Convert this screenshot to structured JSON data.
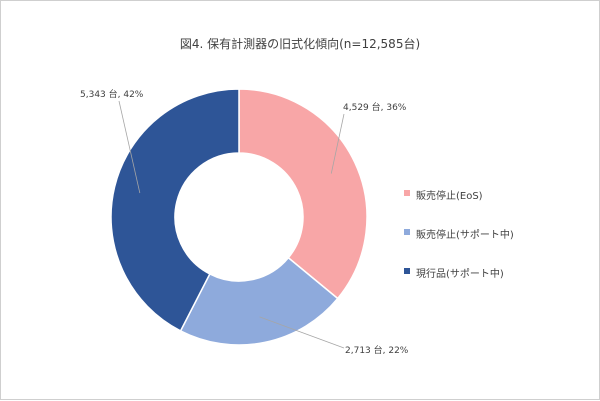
{
  "chart_data": {
    "type": "pie",
    "title": "図4. 保有計測器の旧式化傾向(n=12,585台)",
    "categories": [
      "販売停止(EoS)",
      "販売停止(サポート中)",
      "現行品(サポート中)"
    ],
    "values": [
      4529,
      2713,
      5343
    ],
    "percents": [
      36,
      22,
      42
    ],
    "data_labels": [
      "4,529 台, 36%",
      "2,713 台, 22%",
      "5,343 台, 42%"
    ],
    "colors": [
      "#f8a6a7",
      "#8eaadc",
      "#2e5597"
    ],
    "legend_position": "right",
    "donut": true
  }
}
